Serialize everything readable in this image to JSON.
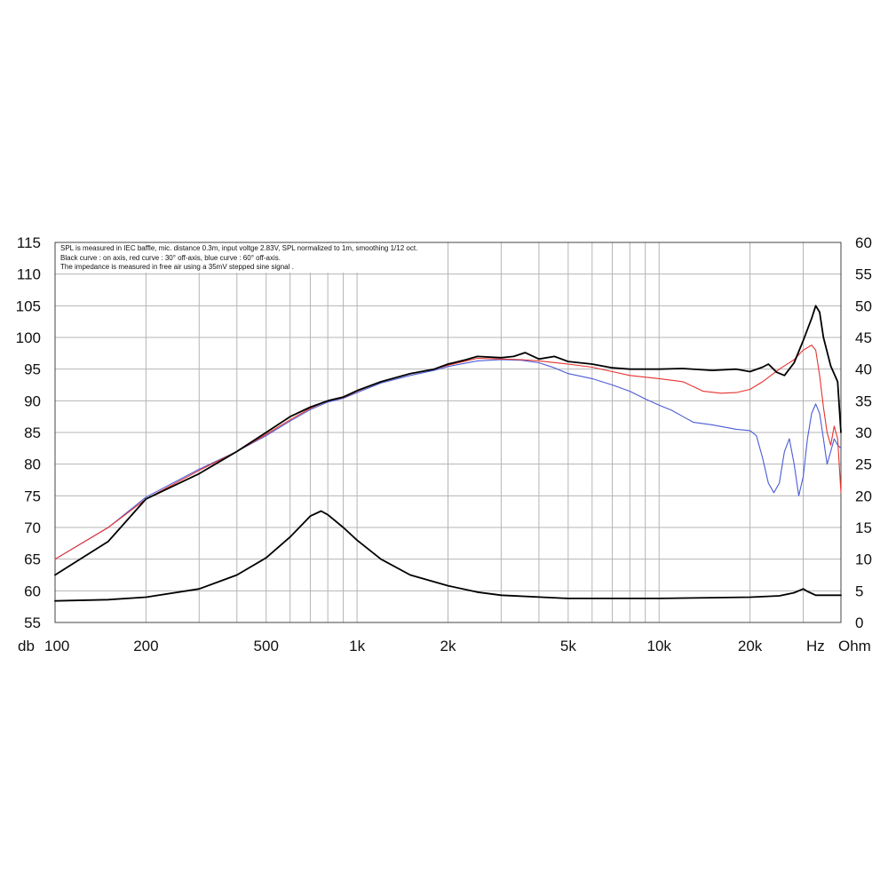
{
  "chart_data": {
    "type": "line",
    "annotations": [
      "SPL is measured in IEC baffle, mic. distance 0.3m, input voltge 2.83V, SPL normalized to 1m, smoothing 1/12 oct.",
      "Black curve : on axis, red curve : 30° off-axis, blue curve : 60° off-axis.",
      "The impedance is measured in free air using a 35mV stepped sine signal ."
    ],
    "x_axis": {
      "scale": "log",
      "range": [
        100,
        40000
      ],
      "unit_label": "Hz",
      "ticks": [
        {
          "value": 100,
          "label": "100"
        },
        {
          "value": 200,
          "label": "200"
        },
        {
          "value": 500,
          "label": "500"
        },
        {
          "value": 1000,
          "label": "1k"
        },
        {
          "value": 2000,
          "label": "2k"
        },
        {
          "value": 5000,
          "label": "5k"
        },
        {
          "value": 10000,
          "label": "10k"
        },
        {
          "value": 20000,
          "label": "20k"
        }
      ]
    },
    "y_left": {
      "unit_label": "db",
      "range": [
        55,
        115
      ],
      "ticks": [
        "55",
        "60",
        "65",
        "70",
        "75",
        "80",
        "85",
        "90",
        "95",
        "100",
        "105",
        "110",
        "115"
      ]
    },
    "y_right": {
      "unit_label": "Ohm",
      "range": [
        0,
        60
      ],
      "ticks": [
        "0",
        "5",
        "10",
        "15",
        "20",
        "25",
        "30",
        "35",
        "40",
        "45",
        "50",
        "55",
        "60"
      ]
    },
    "grid": true,
    "series": [
      {
        "axis": "left",
        "color": "#000000",
        "points": [
          [
            100,
            62.5
          ],
          [
            150,
            67.8
          ],
          [
            200,
            74.5
          ],
          [
            300,
            78.5
          ],
          [
            400,
            82
          ],
          [
            500,
            85
          ],
          [
            600,
            87.5
          ],
          [
            700,
            89
          ],
          [
            800,
            90
          ],
          [
            900,
            90.6
          ],
          [
            1000,
            91.6
          ],
          [
            1200,
            93
          ],
          [
            1500,
            94.3
          ],
          [
            1800,
            95
          ],
          [
            2000,
            95.8
          ],
          [
            2300,
            96.5
          ],
          [
            2500,
            97
          ],
          [
            3000,
            96.8
          ],
          [
            3300,
            97
          ],
          [
            3600,
            97.6
          ],
          [
            4000,
            96.6
          ],
          [
            4500,
            97
          ],
          [
            5000,
            96.2
          ],
          [
            6000,
            95.8
          ],
          [
            7000,
            95.2
          ],
          [
            8000,
            95
          ],
          [
            9000,
            95
          ],
          [
            10000,
            95
          ],
          [
            12000,
            95.1
          ],
          [
            15000,
            94.8
          ],
          [
            18000,
            95
          ],
          [
            20000,
            94.6
          ],
          [
            22000,
            95.3
          ],
          [
            23000,
            95.8
          ],
          [
            24500,
            94.5
          ],
          [
            26000,
            94
          ],
          [
            28000,
            96
          ],
          [
            30000,
            99.5
          ],
          [
            32000,
            103
          ],
          [
            33000,
            105
          ],
          [
            34000,
            104
          ],
          [
            35000,
            100
          ],
          [
            37000,
            95.5
          ],
          [
            39000,
            93
          ],
          [
            40000,
            85
          ]
        ]
      },
      {
        "axis": "left",
        "color": "#e8322e",
        "points": [
          [
            100,
            65
          ],
          [
            150,
            70
          ],
          [
            200,
            74.5
          ],
          [
            300,
            79
          ],
          [
            400,
            82
          ],
          [
            500,
            84.7
          ],
          [
            600,
            87
          ],
          [
            700,
            88.8
          ],
          [
            800,
            90
          ],
          [
            900,
            90.5
          ],
          [
            1000,
            91.5
          ],
          [
            1200,
            93
          ],
          [
            1500,
            94.3
          ],
          [
            1800,
            95
          ],
          [
            2000,
            95.6
          ],
          [
            2500,
            96.7
          ],
          [
            3000,
            96.6
          ],
          [
            3500,
            96.5
          ],
          [
            4000,
            96.3
          ],
          [
            5000,
            95.8
          ],
          [
            6000,
            95.3
          ],
          [
            7000,
            94.6
          ],
          [
            8000,
            94
          ],
          [
            10000,
            93.5
          ],
          [
            12000,
            93
          ],
          [
            14000,
            91.5
          ],
          [
            16000,
            91.2
          ],
          [
            18000,
            91.3
          ],
          [
            20000,
            91.8
          ],
          [
            22000,
            93
          ],
          [
            25000,
            95
          ],
          [
            28000,
            96.5
          ],
          [
            30000,
            98
          ],
          [
            32000,
            98.8
          ],
          [
            33000,
            98
          ],
          [
            34000,
            94
          ],
          [
            35000,
            89
          ],
          [
            36000,
            85
          ],
          [
            37000,
            83
          ],
          [
            38000,
            86
          ],
          [
            39000,
            84
          ],
          [
            40000,
            75.5
          ]
        ]
      },
      {
        "axis": "left",
        "color": "#4a5bd6",
        "points": [
          [
            100,
            65
          ],
          [
            150,
            70
          ],
          [
            200,
            74.8
          ],
          [
            300,
            79.2
          ],
          [
            400,
            82
          ],
          [
            500,
            84.5
          ],
          [
            600,
            86.8
          ],
          [
            700,
            88.6
          ],
          [
            800,
            89.8
          ],
          [
            900,
            90.4
          ],
          [
            1000,
            91.3
          ],
          [
            1200,
            92.8
          ],
          [
            1500,
            94
          ],
          [
            1800,
            94.8
          ],
          [
            2000,
            95.4
          ],
          [
            2500,
            96.3
          ],
          [
            3000,
            96.5
          ],
          [
            3500,
            96.4
          ],
          [
            4000,
            96
          ],
          [
            4500,
            95.2
          ],
          [
            5000,
            94.3
          ],
          [
            6000,
            93.5
          ],
          [
            7000,
            92.5
          ],
          [
            8000,
            91.5
          ],
          [
            9000,
            90.3
          ],
          [
            10000,
            89.3
          ],
          [
            11000,
            88.5
          ],
          [
            12000,
            87.5
          ],
          [
            13000,
            86.6
          ],
          [
            15000,
            86.2
          ],
          [
            18000,
            85.5
          ],
          [
            20000,
            85.3
          ],
          [
            21000,
            84.5
          ],
          [
            22000,
            81
          ],
          [
            23000,
            77
          ],
          [
            24000,
            75.5
          ],
          [
            25000,
            77
          ],
          [
            26000,
            82
          ],
          [
            27000,
            84
          ],
          [
            28000,
            80
          ],
          [
            29000,
            75
          ],
          [
            30000,
            78
          ],
          [
            31000,
            84
          ],
          [
            32000,
            88
          ],
          [
            33000,
            89.5
          ],
          [
            34000,
            88
          ],
          [
            35000,
            84
          ],
          [
            36000,
            80
          ],
          [
            37000,
            82
          ],
          [
            38000,
            84
          ],
          [
            39000,
            83
          ],
          [
            40000,
            82.5
          ]
        ]
      },
      {
        "axis": "right",
        "color": "#000000",
        "points": [
          [
            100,
            3.4
          ],
          [
            150,
            3.6
          ],
          [
            200,
            4.0
          ],
          [
            300,
            5.3
          ],
          [
            400,
            7.5
          ],
          [
            500,
            10.2
          ],
          [
            600,
            13.5
          ],
          [
            700,
            16.8
          ],
          [
            760,
            17.6
          ],
          [
            800,
            17
          ],
          [
            900,
            15
          ],
          [
            1000,
            13
          ],
          [
            1200,
            10
          ],
          [
            1500,
            7.5
          ],
          [
            2000,
            5.8
          ],
          [
            2500,
            4.8
          ],
          [
            3000,
            4.3
          ],
          [
            5000,
            3.8
          ],
          [
            10000,
            3.8
          ],
          [
            20000,
            4.0
          ],
          [
            25000,
            4.2
          ],
          [
            28000,
            4.7
          ],
          [
            30000,
            5.3
          ],
          [
            31000,
            4.9
          ],
          [
            33000,
            4.3
          ],
          [
            40000,
            4.3
          ]
        ]
      }
    ]
  }
}
